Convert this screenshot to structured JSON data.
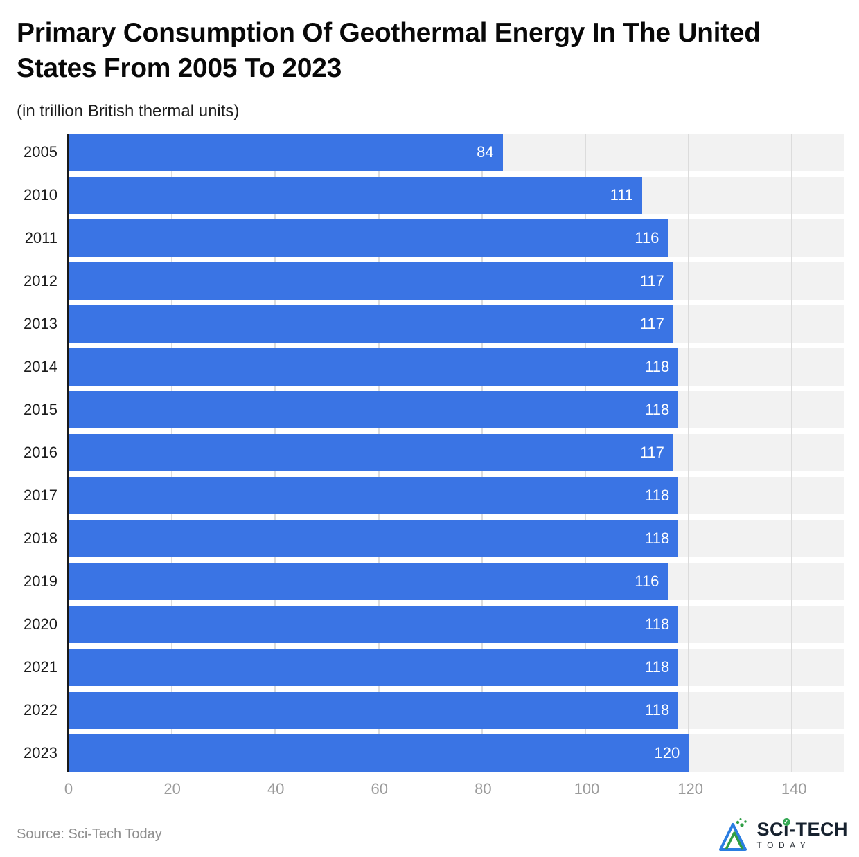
{
  "header": {
    "title": "Primary Consumption Of Geothermal Energy In The United States From 2005 To 2023",
    "subtitle": "(in trillion British thermal units)"
  },
  "chart_data": {
    "type": "bar",
    "orientation": "horizontal",
    "title": "Primary Consumption Of Geothermal Energy In The United States From 2005 To 2023",
    "subtitle": "(in trillion British thermal units)",
    "categories": [
      "2005",
      "2010",
      "2011",
      "2012",
      "2013",
      "2014",
      "2015",
      "2016",
      "2017",
      "2018",
      "2019",
      "2020",
      "2021",
      "2022",
      "2023"
    ],
    "values": [
      84,
      111,
      116,
      117,
      117,
      118,
      118,
      117,
      118,
      118,
      116,
      118,
      118,
      118,
      120
    ],
    "xlabel": "",
    "ylabel": "",
    "xlim": [
      0,
      150
    ],
    "xticks": [
      0,
      20,
      40,
      60,
      80,
      100,
      120,
      140
    ],
    "grid": true,
    "legend": "none",
    "bar_color": "#3a74e4",
    "track_color": "#f2f2f2",
    "value_label_color": "#ffffff"
  },
  "footer": {
    "source": "Source: Sci-Tech Today",
    "logo": {
      "brand": "SCi-TECH",
      "check_glyph": "✓",
      "sub": "TODAY"
    }
  }
}
